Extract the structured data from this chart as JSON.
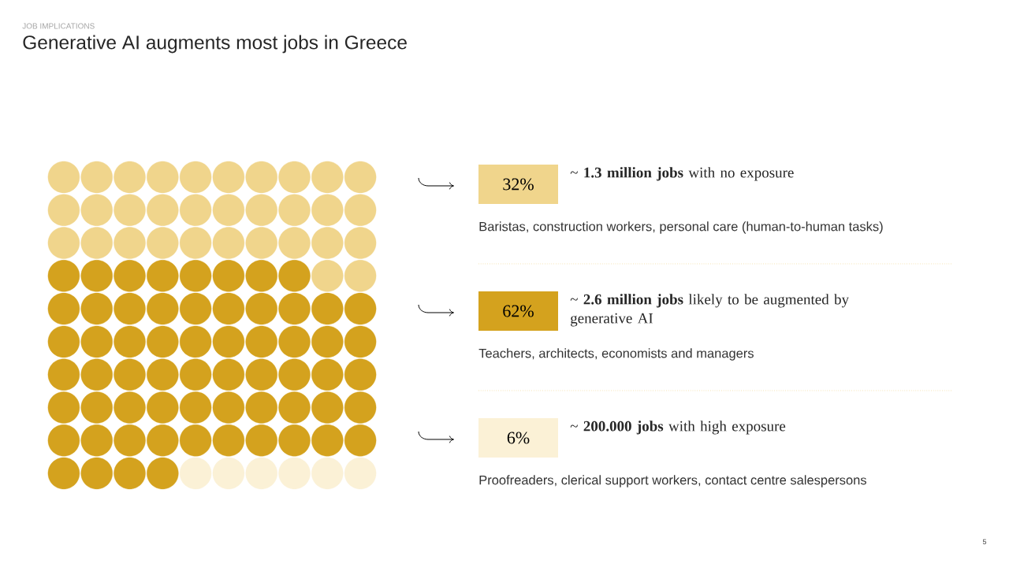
{
  "chart_data": {
    "type": "other",
    "subtitle": "JOB IMPLICATIONS",
    "title": "Generative AI augments most jobs in Greece",
    "categories": [
      "~ **1.3 million jobs** with no exposure",
      "~ **2.6 million jobs** likely to be augmented by generative AI",
      "~ **200.000 jobs** with high exposure"
    ],
    "values": [
      32,
      62,
      6
    ],
    "value_labels": [
      "32%",
      "62%",
      "6%"
    ],
    "colors": [
      "#f0d58c",
      "#d4a21e",
      "#fbf1d6"
    ],
    "annotations": [
      "Baristas, construction workers, personal care (human-to-human tasks)",
      "Teachers, architects, economists and managers",
      "Proofreaders, clerical support workers, contact centre salespersons",
      "5"
    ]
  }
}
